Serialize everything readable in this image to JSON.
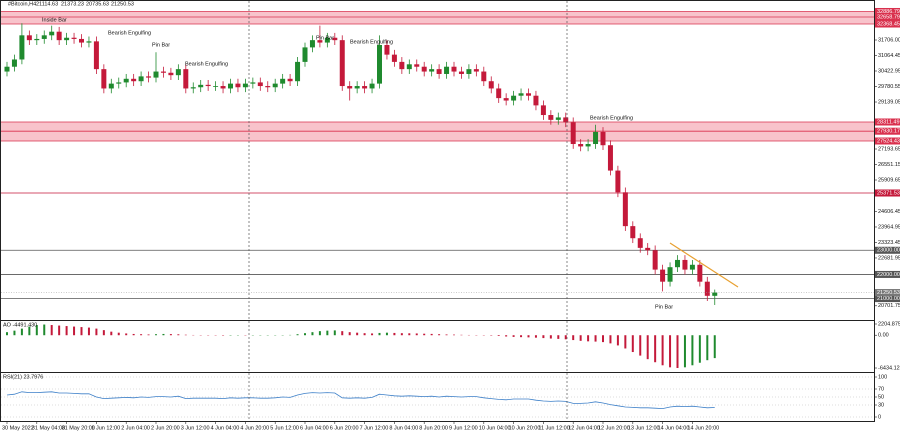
{
  "chart_data": [
    {
      "type": "candlestick",
      "symbol": "#Bitcoin,H4",
      "categories": [
        "30 May 2022",
        null,
        null,
        null,
        "31 May 04:00",
        null,
        null,
        null,
        "31 May 20:00",
        null,
        null,
        null,
        "1 Jun 12:00",
        null,
        null,
        null,
        "2 Jun 04:00",
        null,
        null,
        null,
        "2 Jun 20:00",
        null,
        null,
        null,
        "3 Jun 12:00",
        null,
        null,
        null,
        "4 Jun 04:00",
        null,
        null,
        null,
        "4 Jun 20:00",
        null,
        null,
        null,
        "5 Jun 12:00",
        null,
        null,
        null,
        "6 Jun 04:00",
        null,
        null,
        null,
        "6 Jun 20:00",
        null,
        null,
        null,
        "7 Jun 12:00",
        null,
        null,
        null,
        "8 Jun 04:00",
        null,
        null,
        null,
        "8 Jun 20:00",
        null,
        null,
        null,
        "9 Jun 12:00",
        null,
        null,
        null,
        "10 Jun 04:00",
        null,
        null,
        null,
        "10 Jun 20:00",
        null,
        null,
        null,
        "11 Jun 12:00",
        null,
        null,
        null,
        "12 Jun 04:00",
        null,
        null,
        null,
        "12 Jun 20:00",
        null,
        null,
        null,
        "13 Jun 12:00",
        null,
        null,
        null,
        "14 Jun 04:00",
        null,
        null,
        null,
        "14 Jun 20:00",
        null,
        null,
        null
      ],
      "open": [
        30400,
        30600,
        30900,
        31900,
        31700,
        31750,
        31900,
        32050,
        31700,
        31800,
        31750,
        31600,
        31650,
        30500,
        29700,
        29900,
        29950,
        30100,
        30000,
        30200,
        30150,
        30400,
        30350,
        30250,
        30500,
        29700,
        29750,
        29850,
        29800,
        29800,
        29700,
        29900,
        29750,
        29900,
        29950,
        29800,
        29750,
        29900,
        30100,
        30000,
        30800,
        31400,
        31700,
        31600,
        31800,
        31700,
        29800,
        29700,
        29800,
        29700,
        29900,
        31500,
        31100,
        30800,
        30500,
        30700,
        30600,
        30400,
        30500,
        30300,
        30600,
        30400,
        30300,
        30500,
        30400,
        30000,
        29700,
        29300,
        29200,
        29400,
        29500,
        29400,
        29000,
        28600,
        28400,
        28500,
        28300,
        27400,
        27300,
        27400,
        27900,
        27350,
        26300,
        25400,
        24000,
        23500,
        23100,
        23000,
        22200,
        21700,
        22300,
        22600,
        22200,
        22400,
        21700,
        21114.63
      ],
      "high": [
        30800,
        31100,
        32400,
        32100,
        31950,
        32100,
        32300,
        32250,
        32000,
        32000,
        31950,
        31850,
        31850,
        30700,
        30100,
        30150,
        30300,
        30300,
        30400,
        30400,
        31200,
        30600,
        30550,
        30700,
        30700,
        29950,
        30050,
        30050,
        30000,
        30000,
        30100,
        30100,
        30100,
        30150,
        30150,
        30000,
        30100,
        30300,
        30300,
        31000,
        31600,
        31900,
        32300,
        32000,
        32000,
        31900,
        30000,
        30000,
        30000,
        30100,
        31900,
        31700,
        31300,
        31000,
        30900,
        30900,
        30800,
        30700,
        30700,
        30800,
        30800,
        30600,
        30700,
        30700,
        30600,
        30200,
        29900,
        29500,
        29600,
        29700,
        29700,
        29600,
        29200,
        28800,
        28700,
        28700,
        28500,
        27600,
        27600,
        28200,
        28100,
        27550,
        26500,
        25600,
        24200,
        23700,
        23300,
        23200,
        22400,
        22500,
        22800,
        22800,
        22600,
        22600,
        21900,
        21373.23
      ],
      "low": [
        30200,
        30400,
        30700,
        31500,
        31500,
        31550,
        31700,
        31500,
        31500,
        31550,
        31400,
        31400,
        30300,
        29500,
        29500,
        29700,
        29750,
        29800,
        29800,
        29950,
        29950,
        30150,
        30050,
        30050,
        29500,
        29500,
        29550,
        29600,
        29600,
        29500,
        29500,
        29550,
        29550,
        29700,
        29600,
        29550,
        29550,
        29700,
        29800,
        29800,
        30600,
        31200,
        31400,
        31400,
        31500,
        29600,
        29200,
        29500,
        29500,
        29500,
        29700,
        30900,
        30600,
        30300,
        30300,
        30400,
        30200,
        30200,
        30100,
        30100,
        30200,
        30100,
        30100,
        30200,
        29800,
        29500,
        29100,
        29000,
        29000,
        29200,
        29200,
        28800,
        28400,
        28200,
        28200,
        28100,
        27200,
        27100,
        27100,
        27200,
        27150,
        26100,
        25200,
        23800,
        23300,
        22900,
        22800,
        22000,
        21300,
        21500,
        22100,
        22000,
        22000,
        21500,
        20900,
        20735.63
      ],
      "close": [
        30600,
        30900,
        31900,
        31700,
        31750,
        31900,
        32050,
        31700,
        31800,
        31750,
        31600,
        31650,
        30500,
        29700,
        29900,
        29950,
        30100,
        30000,
        30200,
        30150,
        30400,
        30350,
        30250,
        30500,
        29700,
        29750,
        29850,
        29800,
        29800,
        29700,
        29900,
        29750,
        29900,
        29950,
        29800,
        29750,
        29900,
        30100,
        30000,
        30800,
        31400,
        31700,
        31600,
        31800,
        31700,
        29800,
        29700,
        29800,
        29700,
        29900,
        31500,
        31100,
        30800,
        30500,
        30700,
        30600,
        30400,
        30500,
        30300,
        30600,
        30400,
        30300,
        30500,
        30400,
        30000,
        29700,
        29300,
        29200,
        29400,
        29500,
        29400,
        29000,
        28600,
        28400,
        28500,
        28300,
        27400,
        27300,
        27400,
        27900,
        27350,
        26300,
        25400,
        24000,
        23500,
        23100,
        23000,
        22200,
        21700,
        22300,
        22600,
        22200,
        22400,
        21700,
        21114.63,
        21250.53
      ],
      "up_color": "#1f8a2e",
      "down_color": "#c4193a",
      "ylim": [
        20155,
        33321
      ],
      "yticks": [
        {
          "value": 31706,
          "label": "31706.00"
        },
        31064.45,
        30422.95,
        29780.55,
        29139.05,
        27193.65,
        26551.15,
        25909.65,
        24606.45,
        23964.95,
        23323.45,
        22681.95,
        20701.75
      ],
      "levels": [
        {
          "color": "#d9304d",
          "fill": "#f8c3cb",
          "prices": [
            32886.79,
            32658.79,
            32368.45
          ]
        },
        {
          "color": "#d9304d",
          "fill": "#f8c3cb",
          "prices": [
            28311.49,
            27930.17,
            27524.43
          ]
        },
        {
          "color": "#c4193a",
          "prices": [
            25371.53
          ]
        },
        {
          "color": "#555555",
          "prices": [
            {
              "value": 23000,
              "label": "23000.00"
            },
            {
              "value": 22000,
              "label": "22000.00"
            },
            {
              "value": 21000,
              "label": "21000.00"
            }
          ]
        }
      ]
    },
    {
      "type": "bar",
      "label": "AO -4491.430",
      "values": [
        600,
        900,
        1300,
        1700,
        2000,
        2100,
        2000,
        1900,
        1800,
        1700,
        1600,
        1500,
        1300,
        1000,
        700,
        500,
        350,
        250,
        200,
        150,
        200,
        250,
        220,
        180,
        100,
        50,
        20,
        -30,
        -60,
        -80,
        -70,
        -50,
        -60,
        -40,
        -30,
        -20,
        -10,
        20,
        60,
        200,
        400,
        600,
        800,
        900,
        950,
        800,
        600,
        500,
        400,
        350,
        450,
        500,
        450,
        400,
        380,
        350,
        300,
        260,
        200,
        150,
        120,
        80,
        50,
        30,
        -20,
        -80,
        -150,
        -250,
        -330,
        -380,
        -420,
        -480,
        -560,
        -650,
        -720,
        -800,
        -950,
        -1100,
        -1200,
        -1250,
        -1350,
        -1600,
        -2000,
        -2600,
        -3300,
        -4000,
        -4700,
        -5300,
        -5900,
        -6300,
        -6434.124,
        -6300,
        -5900,
        -5400,
        -4900,
        -4491.43
      ],
      "up_color": "#1f8a2e",
      "down_color": "#c4193a",
      "ylim": [
        -7219,
        2793
      ],
      "yticks": [
        2204.875,
        {
          "value": 0,
          "label": "0.00"
        },
        -6434.124
      ]
    },
    {
      "type": "line",
      "label": "RSI(21) 23.7976",
      "values": [
        55,
        57,
        63,
        61,
        61,
        62,
        63,
        60,
        60,
        59,
        58,
        58,
        50,
        46,
        47,
        48,
        49,
        48,
        50,
        49,
        51,
        51,
        50,
        52,
        46,
        47,
        47,
        47,
        47,
        46,
        48,
        47,
        48,
        48,
        47,
        47,
        48,
        50,
        49,
        55,
        59,
        61,
        60,
        61,
        60,
        48,
        47,
        48,
        47,
        49,
        57,
        55,
        53,
        52,
        53,
        52,
        51,
        52,
        50,
        52,
        51,
        50,
        51,
        51,
        48,
        46,
        44,
        43,
        45,
        45,
        45,
        42,
        40,
        39,
        40,
        39,
        34,
        34,
        35,
        38,
        35,
        31,
        28,
        25,
        24,
        23,
        23,
        22,
        21,
        25,
        27,
        26,
        27,
        25,
        23,
        23.7976
      ],
      "color": "#3c7fc8",
      "ylim": [
        -10,
        110
      ],
      "yticks": [
        0,
        30,
        50,
        70,
        100
      ]
    }
  ],
  "annotations": [
    "Inside Bar",
    "Bearish Engulfing",
    "Pin Bar",
    "Bearish Engulfing",
    "Pin Bar",
    "Bearish Engulfing",
    "Bearish Engulfing",
    "Pin Bar"
  ]
}
